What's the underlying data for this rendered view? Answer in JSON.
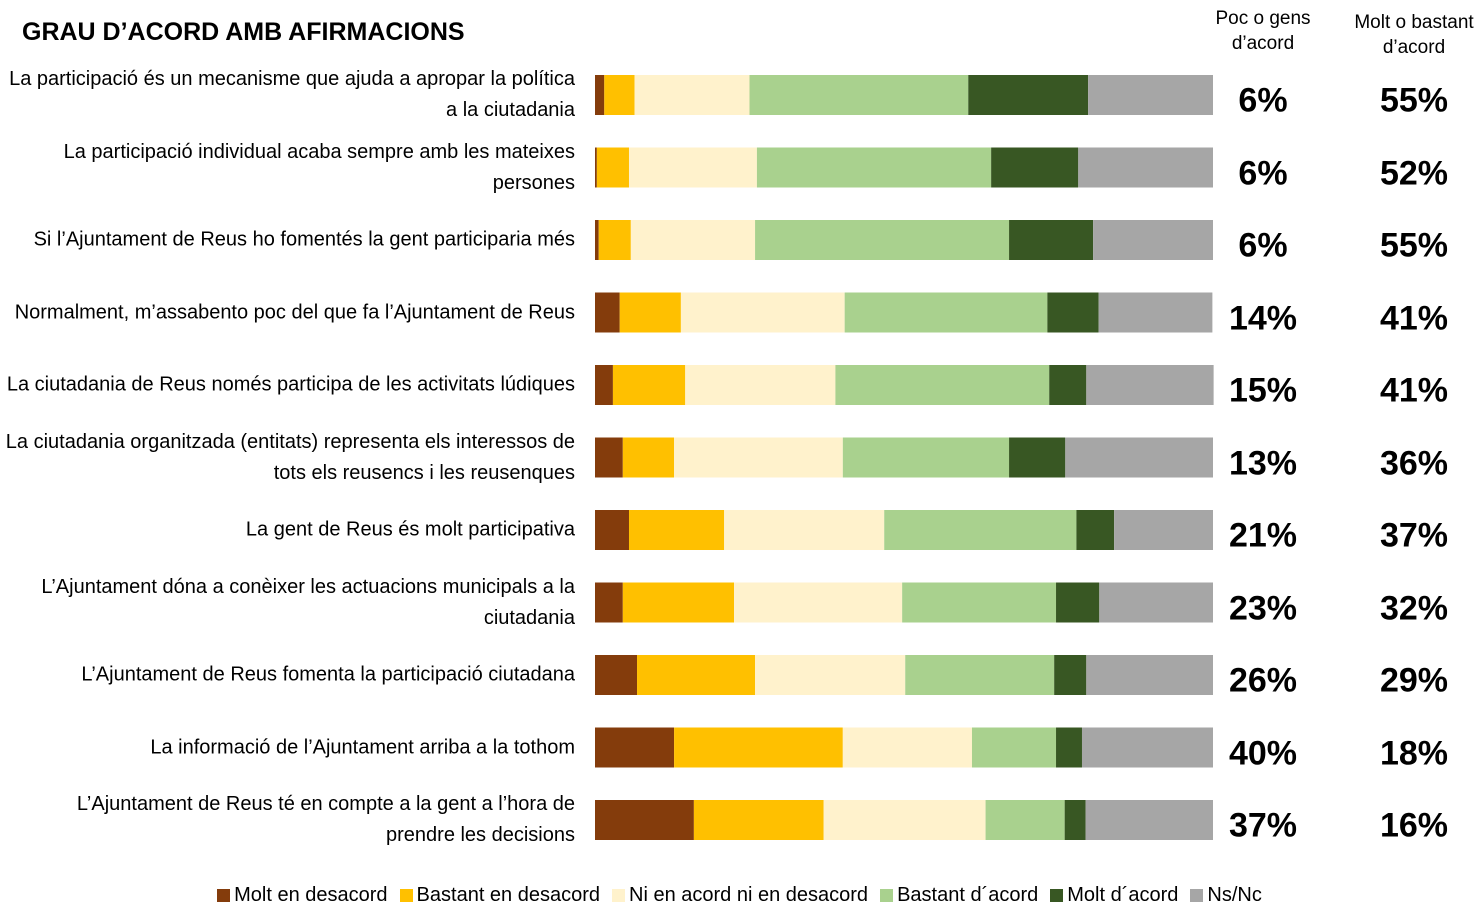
{
  "chart_data": {
    "type": "bar",
    "orientation": "horizontal",
    "stacked": true,
    "title": "GRAU D’ACORD AMB AFIRMACIONS",
    "categories": [
      "La participació és un mecanisme que ajuda a apropar la política a la ciutadania",
      "La participació individual acaba sempre amb les mateixes persones",
      "Si l’Ajuntament de Reus ho fomentés la gent participaria més",
      "Normalment, m’assabento poc del que fa l’Ajuntament de Reus",
      "La ciutadania de Reus només participa de les activitats lúdiques",
      "La ciutadania organitzada (entitats) representa els interessos de tots els reusencs i les reusenques",
      "La gent de Reus és molt participativa",
      "L’Ajuntament dóna a conèixer les actuacions municipals a la ciutadania",
      "L’Ajuntament de Reus fomenta la participació ciutadana",
      "La informació de l’Ajuntament arriba a la tothom",
      "L’Ajuntament de Reus té en compte a la gent a l’hora de prendre les decisions"
    ],
    "series": [
      {
        "name": "Molt en desacord",
        "color": "#843c0c",
        "values": [
          1.5,
          0.3,
          0.6,
          4.0,
          2.9,
          4.5,
          5.5,
          4.5,
          6.8,
          12.8,
          16.0
        ]
      },
      {
        "name": "Bastant en desacord",
        "color": "#ffc000",
        "values": [
          4.9,
          5.2,
          5.2,
          9.9,
          11.7,
          8.3,
          15.4,
          18.0,
          19.1,
          27.3,
          21.0
        ]
      },
      {
        "name": "Ni en acord ni en desacord",
        "color": "#fff2cc",
        "values": [
          18.6,
          20.7,
          20.1,
          26.5,
          24.3,
          27.3,
          25.9,
          27.2,
          24.3,
          20.9,
          26.2
        ]
      },
      {
        "name": "Bastant d´acord",
        "color": "#a9d18e",
        "values": [
          35.4,
          37.9,
          41.1,
          32.8,
          34.6,
          26.9,
          31.1,
          24.9,
          24.1,
          13.6,
          12.8
        ]
      },
      {
        "name": "Molt d´acord",
        "color": "#385723",
        "values": [
          19.4,
          14.1,
          13.6,
          8.3,
          6.0,
          9.1,
          6.1,
          7.0,
          5.2,
          4.2,
          3.4
        ]
      },
      {
        "name": "Ns/Nc",
        "color": "#a6a6a6",
        "values": [
          20.2,
          21.8,
          19.4,
          18.4,
          20.6,
          23.9,
          16.0,
          18.4,
          20.5,
          21.2,
          20.6
        ]
      }
    ],
    "xlim": [
      0,
      100
    ],
    "summary_columns": [
      {
        "name": "Poc o gens d’acord",
        "values": [
          6,
          6,
          6,
          14,
          15,
          13,
          21,
          23,
          26,
          40,
          37
        ],
        "value_labels": [
          "6%",
          "6%",
          "6%",
          "14%",
          "15%",
          "13%",
          "21%",
          "23%",
          "26%",
          "40%",
          "37%"
        ]
      },
      {
        "name": "Molt o bastant d’acord",
        "values": [
          55,
          52,
          55,
          41,
          41,
          36,
          37,
          32,
          29,
          18,
          16
        ],
        "value_labels": [
          "55%",
          "52%",
          "55%",
          "41%",
          "41%",
          "36%",
          "37%",
          "32%",
          "29%",
          "18%",
          "16%"
        ]
      }
    ],
    "legend": "bottom"
  }
}
